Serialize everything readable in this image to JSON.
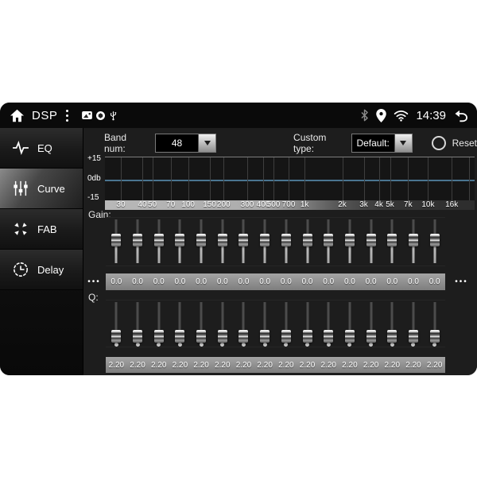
{
  "status_bar": {
    "home_label": "DSP",
    "time": "14:39",
    "left_icons": [
      "home-icon",
      "kebab-menu-icon",
      "sd-card-icon",
      "badge-icon",
      "usb-icon"
    ],
    "right_icons": [
      "bluetooth-icon",
      "location-icon",
      "wifi-icon",
      "back-icon"
    ]
  },
  "sidebar": {
    "items": [
      {
        "label": "EQ",
        "icon": "waveform-icon",
        "active": false
      },
      {
        "label": "Curve",
        "icon": "sliders-icon",
        "active": true
      },
      {
        "label": "FAB",
        "icon": "fade-balance-icon",
        "active": false
      },
      {
        "label": "Delay",
        "icon": "clock-icon",
        "active": false
      }
    ]
  },
  "controls": {
    "band_num_label": "Band num:",
    "band_num_value": "48",
    "custom_type_label": "Custom type:",
    "custom_type_value": "Default:",
    "reset_label": "Reset"
  },
  "graph": {
    "y_axis_labels": [
      "+15",
      "0db",
      "-15"
    ],
    "zero_line_color": "#4a7590",
    "freq_labels": [
      {
        "text": "30",
        "pct": 4.3
      },
      {
        "text": "40",
        "pct": 10.1
      },
      {
        "text": "50",
        "pct": 12.8
      },
      {
        "text": "70",
        "pct": 17.8
      },
      {
        "text": "100",
        "pct": 22.5
      },
      {
        "text": "150",
        "pct": 28.3
      },
      {
        "text": "200",
        "pct": 32.1
      },
      {
        "text": "300",
        "pct": 38.5
      },
      {
        "text": "400",
        "pct": 42.8
      },
      {
        "text": "500",
        "pct": 45.6
      },
      {
        "text": "700",
        "pct": 49.7
      },
      {
        "text": "1k",
        "pct": 54.0
      },
      {
        "text": "2k",
        "pct": 64.2
      },
      {
        "text": "3k",
        "pct": 70.0
      },
      {
        "text": "4k",
        "pct": 74.1
      },
      {
        "text": "5k",
        "pct": 77.1
      },
      {
        "text": "7k",
        "pct": 82.0
      },
      {
        "text": "10k",
        "pct": 87.4
      },
      {
        "text": "16k",
        "pct": 93.8
      }
    ],
    "extra_gridlines_pct": [
      98.5
    ]
  },
  "gain": {
    "label": "Gain:",
    "more_left": "•••",
    "more_right": "•••",
    "slider_pct": 47,
    "values": [
      "0.0",
      "0.0",
      "0.0",
      "0.0",
      "0.0",
      "0.0",
      "0.0",
      "0.0",
      "0.0",
      "0.0",
      "0.0",
      "0.0",
      "0.0",
      "0.0",
      "0.0",
      "0.0"
    ]
  },
  "q": {
    "label": "Q:",
    "slider_pct": 78,
    "values": [
      "2.20",
      "2.20",
      "2.20",
      "2.20",
      "2.20",
      "2.20",
      "2.20",
      "2.20",
      "2.20",
      "2.20",
      "2.20",
      "2.20",
      "2.20",
      "2.20",
      "2.20",
      "2.20"
    ]
  }
}
